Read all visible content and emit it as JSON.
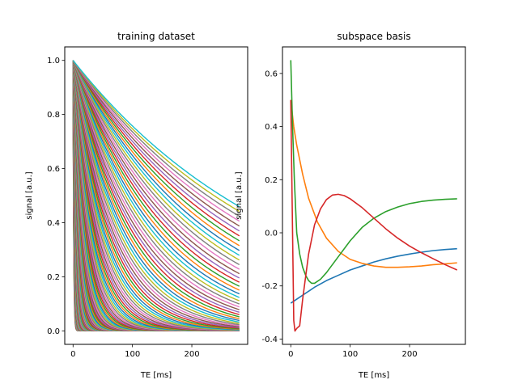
{
  "chart_data": [
    {
      "type": "line",
      "title": "training dataset",
      "xlabel": "TE [ms]",
      "ylabel": "signal [a.u.]",
      "xlim": [
        -14,
        294
      ],
      "ylim": [
        -0.05,
        1.05
      ],
      "xticks": [
        0,
        100,
        200
      ],
      "yticks": [
        0.0,
        0.2,
        0.4,
        0.6,
        0.8,
        1.0
      ],
      "x_range": [
        0,
        280
      ],
      "model": "exp(-TE/T2)",
      "T2_range_ms": [
        1,
        360
      ],
      "curve_count": 120,
      "grid": false,
      "color_cycle": [
        "#1f77b4",
        "#ff7f0e",
        "#2ca02c",
        "#d62728",
        "#9467bd",
        "#8c564b",
        "#e377c2",
        "#7f7f7f",
        "#bcbd22",
        "#17becf"
      ]
    },
    {
      "type": "line",
      "title": "subspace basis",
      "xlabel": "TE [ms]",
      "ylabel": "signal [a.u.]",
      "xlim": [
        -14,
        294
      ],
      "ylim": [
        -0.42,
        0.7
      ],
      "xticks": [
        0,
        100,
        200
      ],
      "yticks": [
        -0.4,
        -0.2,
        0.0,
        0.2,
        0.4,
        0.6
      ],
      "grid": false,
      "series": [
        {
          "color": "#1f77b4",
          "points": [
            [
              0,
              -0.265
            ],
            [
              20,
              -0.235
            ],
            [
              40,
              -0.205
            ],
            [
              60,
              -0.18
            ],
            [
              80,
              -0.16
            ],
            [
              100,
              -0.14
            ],
            [
              120,
              -0.125
            ],
            [
              140,
              -0.11
            ],
            [
              160,
              -0.098
            ],
            [
              180,
              -0.088
            ],
            [
              200,
              -0.08
            ],
            [
              220,
              -0.073
            ],
            [
              240,
              -0.067
            ],
            [
              260,
              -0.063
            ],
            [
              280,
              -0.06
            ]
          ]
        },
        {
          "color": "#ff7f0e",
          "points": [
            [
              0,
              0.5
            ],
            [
              5,
              0.4
            ],
            [
              10,
              0.33
            ],
            [
              20,
              0.22
            ],
            [
              30,
              0.13
            ],
            [
              45,
              0.04
            ],
            [
              60,
              -0.02
            ],
            [
              80,
              -0.07
            ],
            [
              100,
              -0.1
            ],
            [
              120,
              -0.115
            ],
            [
              140,
              -0.125
            ],
            [
              160,
              -0.13
            ],
            [
              180,
              -0.13
            ],
            [
              200,
              -0.128
            ],
            [
              220,
              -0.125
            ],
            [
              240,
              -0.12
            ],
            [
              260,
              -0.117
            ],
            [
              280,
              -0.113
            ]
          ]
        },
        {
          "color": "#2ca02c",
          "points": [
            [
              0,
              0.65
            ],
            [
              3,
              0.4
            ],
            [
              6,
              0.2
            ],
            [
              10,
              0.0
            ],
            [
              15,
              -0.08
            ],
            [
              20,
              -0.13
            ],
            [
              25,
              -0.16
            ],
            [
              30,
              -0.18
            ],
            [
              35,
              -0.19
            ],
            [
              40,
              -0.19
            ],
            [
              50,
              -0.175
            ],
            [
              60,
              -0.15
            ],
            [
              80,
              -0.09
            ],
            [
              100,
              -0.03
            ],
            [
              120,
              0.02
            ],
            [
              140,
              0.055
            ],
            [
              160,
              0.08
            ],
            [
              180,
              0.097
            ],
            [
              200,
              0.11
            ],
            [
              220,
              0.118
            ],
            [
              240,
              0.123
            ],
            [
              260,
              0.126
            ],
            [
              280,
              0.128
            ]
          ]
        },
        {
          "color": "#d62728",
          "points": [
            [
              0,
              0.5
            ],
            [
              3,
              0.0
            ],
            [
              5,
              -0.33
            ],
            [
              7,
              -0.37
            ],
            [
              10,
              -0.36
            ],
            [
              15,
              -0.35
            ],
            [
              20,
              -0.25
            ],
            [
              30,
              -0.08
            ],
            [
              40,
              0.03
            ],
            [
              50,
              0.09
            ],
            [
              60,
              0.125
            ],
            [
              70,
              0.142
            ],
            [
              80,
              0.145
            ],
            [
              90,
              0.14
            ],
            [
              100,
              0.128
            ],
            [
              120,
              0.095
            ],
            [
              140,
              0.055
            ],
            [
              160,
              0.015
            ],
            [
              180,
              -0.02
            ],
            [
              200,
              -0.05
            ],
            [
              220,
              -0.075
            ],
            [
              240,
              -0.098
            ],
            [
              260,
              -0.12
            ],
            [
              280,
              -0.14
            ]
          ]
        }
      ]
    }
  ]
}
